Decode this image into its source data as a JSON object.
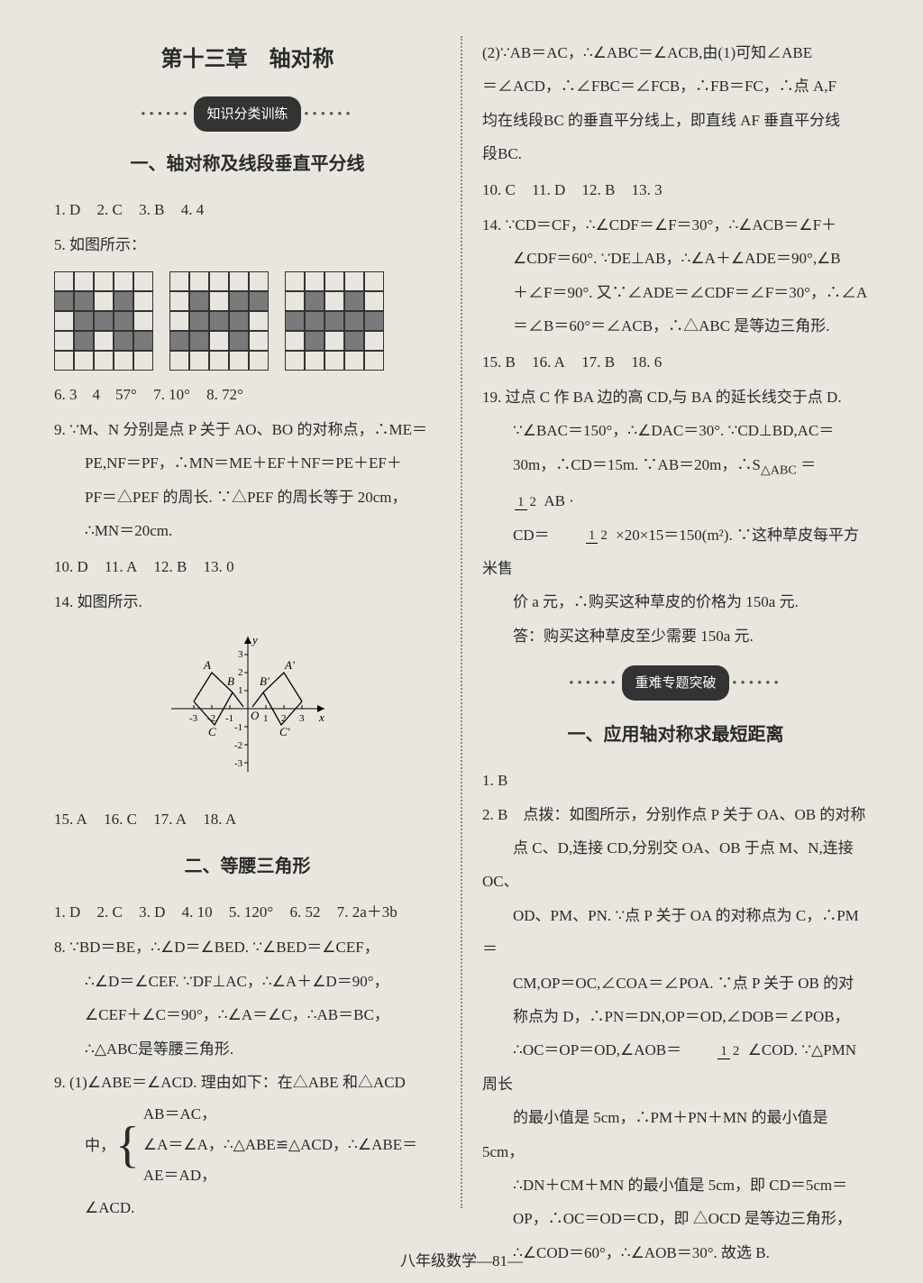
{
  "chapter_title": "第十三章　轴对称",
  "badge1": "知识分类训练",
  "badge2": "重难专题突破",
  "footer": "八年级数学—81—",
  "left": {
    "sec1_title": "一、轴对称及线段垂直平分线",
    "l1": {
      "a1": "1. D",
      "a2": "2. C",
      "a3": "3. B",
      "a4": "4. 4"
    },
    "l2": "5. 如图所示：",
    "grids": [
      [
        [
          0,
          0,
          0,
          0,
          0
        ],
        [
          1,
          1,
          0,
          1,
          0
        ],
        [
          0,
          1,
          1,
          1,
          0
        ],
        [
          0,
          1,
          0,
          1,
          1
        ],
        [
          0,
          0,
          0,
          0,
          0
        ]
      ],
      [
        [
          0,
          0,
          0,
          0,
          0
        ],
        [
          0,
          1,
          0,
          1,
          1
        ],
        [
          0,
          1,
          1,
          1,
          0
        ],
        [
          1,
          1,
          0,
          1,
          0
        ],
        [
          0,
          0,
          0,
          0,
          0
        ]
      ],
      [
        [
          0,
          0,
          0,
          0,
          0
        ],
        [
          0,
          1,
          0,
          1,
          0
        ],
        [
          1,
          1,
          1,
          1,
          1
        ],
        [
          0,
          1,
          0,
          1,
          0
        ],
        [
          0,
          0,
          0,
          0,
          0
        ]
      ]
    ],
    "l3": {
      "a1": "6. 3　4　57°",
      "a2": "7. 10°",
      "a3": "8. 72°"
    },
    "l4a": "9. ∵M、N 分别是点 P 关于 AO、BO 的对称点，∴ME＝",
    "l4b": "PE,NF＝PF，∴MN＝ME＋EF＋NF＝PE＋EF＋",
    "l4c": "PF＝△PEF 的周长. ∵△PEF 的周长等于 20cm，",
    "l4d": "∴MN＝20cm.",
    "l5": {
      "a1": "10. D",
      "a2": "11. A",
      "a3": "12. B",
      "a4": "13. 0"
    },
    "l6": "14. 如图所示.",
    "graph": {
      "xrange": [
        -3,
        3
      ],
      "yrange": [
        -3,
        3
      ],
      "pts_left": [
        [
          -3,
          0.3
        ],
        [
          -2.1,
          1.6
        ],
        [
          -1.2,
          0.9
        ],
        [
          -0.3,
          0.1
        ]
      ],
      "pts_right": [
        [
          0.3,
          0.1
        ],
        [
          1.2,
          0.9
        ],
        [
          2.1,
          1.6
        ],
        [
          3,
          0.3
        ]
      ],
      "labels": [
        "A",
        "B",
        "C",
        "O",
        "A'",
        "B'",
        "C'",
        "x",
        "y"
      ]
    },
    "l7": {
      "a1": "15. A",
      "a2": "16. C",
      "a3": "17. A",
      "a4": "18. A"
    },
    "sec2_title": "二、等腰三角形",
    "m1": {
      "a1": "1. D",
      "a2": "2. C",
      "a3": "3. D",
      "a4": "4. 10",
      "a5": "5. 120°",
      "a6": "6. 52",
      "a7": "7. 2a＋3b"
    },
    "m2a": "8. ∵BD＝BE，∴∠D＝∠BED. ∵∠BED＝∠CEF，",
    "m2b": "∴∠D＝∠CEF. ∵DF⊥AC，∴∠A＋∠D＝90°，",
    "m2c": "∠CEF＋∠C＝90°，∴∠A＝∠C，∴AB＝BC，",
    "m2d": "∴△ABC是等腰三角形.",
    "m3a": "9. (1)∠ABE＝∠ACD. 理由如下：在△ABE 和△ACD",
    "m3b_pre": "中，",
    "m3b_1": "AB＝AC，",
    "m3b_2": "∠A＝∠A，∴△ABE≌△ACD，∴∠ABE＝",
    "m3b_3": "AE＝AD，",
    "m3c": "∠ACD."
  },
  "right": {
    "r1a": "(2)∵AB＝AC，∴∠ABC＝∠ACB,由(1)可知∠ABE",
    "r1b": "＝∠ACD，∴∠FBC＝∠FCB，∴FB＝FC，∴点 A,F",
    "r1c": "均在线段BC 的垂直平分线上，即直线 AF 垂直平分线",
    "r1d": "段BC.",
    "r2": {
      "a1": "10. C",
      "a2": "11. D",
      "a3": "12. B",
      "a4": "13. 3"
    },
    "r3a": "14. ∵CD＝CF，∴∠CDF＝∠F＝30°，∴∠ACB＝∠F＋",
    "r3b": "∠CDF＝60°. ∵DE⊥AB，∴∠A＋∠ADE＝90°,∠B",
    "r3c": "＋∠F＝90°. 又∵∠ADE＝∠CDF＝∠F＝30°，∴∠A",
    "r3d": "＝∠B＝60°＝∠ACB，∴△ABC 是等边三角形.",
    "r4": {
      "a1": "15. B",
      "a2": "16. A",
      "a3": "17. B",
      "a4": "18. 6"
    },
    "r5a": "19. 过点 C 作 BA 边的高 CD,与 BA 的延长线交于点 D.",
    "r5b_pre": "∵∠BAC＝150°，∴∠DAC＝30°. ∵CD⊥BD,AC＝",
    "r5c_pre": "30m，∴CD＝15m. ∵AB＝20m，∴S",
    "r5c_mid": "＝",
    "r5c_post": "AB ·",
    "r5d_pre": "CD＝",
    "r5d_mid": "×20×15＝150(m²). ∵这种草皮每平方米售",
    "r5e": "价 a 元，∴购买这种草皮的价格为 150a 元.",
    "r5f": "答：购买这种草皮至少需要 150a 元.",
    "sec3_title": "一、应用轴对称求最短距离",
    "s1": "1. B",
    "s2a": "2. B　点拨：如图所示，分别作点 P 关于 OA、OB 的对称",
    "s2b": "点 C、D,连接 CD,分别交 OA、OB 于点 M、N,连接 OC、",
    "s2c": "OD、PM、PN. ∵点 P 关于 OA 的对称点为 C，∴PM＝",
    "s2d": "CM,OP＝OC,∠COA＝∠POA. ∵点 P 关于 OB 的对",
    "s2e": "称点为 D，∴PN＝DN,OP＝OD,∠DOB＝∠POB，",
    "s2f_pre": "∴OC＝OP＝OD,∠AOB＝",
    "s2f_post": "∠COD. ∵△PMN 周长",
    "s2g": "的最小值是 5cm，∴PM＋PN＋MN 的最小值是 5cm，",
    "s2h": "∴DN＋CM＋MN 的最小值是 5cm，即 CD＝5cm＝",
    "s2i": "OP，∴OC＝OD＝CD，即 △OCD 是等边三角形，",
    "s2j": "∴∠COD＝60°，∴∠AOB＝30°. 故选 B."
  },
  "colors": {
    "bg": "#e8e6de",
    "text": "#2a2a2a",
    "grid_fill": "#7a7a7a",
    "badge_bg": "#333333"
  }
}
